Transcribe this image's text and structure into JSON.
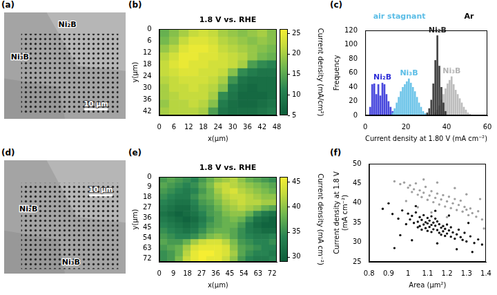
{
  "chart_data": [
    {
      "panel": "(a)",
      "type": "image",
      "labels": [
        "Ni₂B",
        "Ni₃B"
      ],
      "scale_bar": "10 μm"
    },
    {
      "panel": "(b)",
      "type": "heatmap",
      "title": "1.8 V vs. RHE",
      "x_label": "x(μm)",
      "y_label": "y(μm)",
      "x": [
        2,
        6,
        10,
        14,
        18,
        22,
        26,
        30,
        34,
        38,
        42,
        46
      ],
      "y": [
        2,
        6,
        10,
        14,
        18,
        22,
        26,
        30,
        34,
        38,
        42
      ],
      "cells": [
        [
          16,
          18,
          20,
          22,
          23,
          22,
          20,
          19,
          18,
          19,
          20,
          18
        ],
        [
          17,
          19,
          22,
          24,
          24,
          23,
          21,
          20,
          19,
          18,
          19,
          18
        ],
        [
          19,
          21,
          24,
          25,
          25,
          24,
          22,
          21,
          20,
          19,
          18,
          17
        ],
        [
          21,
          23,
          25,
          25,
          24,
          24,
          23,
          22,
          21,
          19,
          17,
          16
        ],
        [
          22,
          24,
          25,
          24,
          24,
          23,
          23,
          22,
          20,
          14,
          12,
          11
        ],
        [
          22,
          23,
          24,
          24,
          23,
          23,
          22,
          18,
          12,
          10,
          9,
          9
        ],
        [
          21,
          22,
          23,
          23,
          23,
          22,
          20,
          13,
          9,
          8,
          8,
          8
        ],
        [
          20,
          22,
          22,
          23,
          22,
          21,
          18,
          10,
          8,
          7,
          8,
          8
        ],
        [
          20,
          21,
          22,
          22,
          22,
          20,
          12,
          9,
          7,
          7,
          7,
          8
        ],
        [
          19,
          21,
          21,
          22,
          21,
          18,
          10,
          8,
          7,
          7,
          8,
          9
        ],
        [
          20,
          21,
          21,
          21,
          20,
          14,
          9,
          8,
          8,
          8,
          9,
          10
        ]
      ],
      "xlim": [
        0,
        48
      ],
      "ylim": [
        0,
        44
      ],
      "xticks": [
        0,
        6,
        12,
        18,
        24,
        30,
        36,
        42,
        48
      ],
      "yticks": [
        0,
        6,
        12,
        18,
        24,
        30,
        36,
        42
      ],
      "clim": [
        5,
        26
      ],
      "cticks": [
        5,
        10,
        15,
        20,
        25
      ],
      "colorbar_label": "Current density (mA/cm²)",
      "grid": false
    },
    {
      "panel": "(c)",
      "type": "histogram",
      "x_label": "Current density at 1.80 V (mA cm⁻²)",
      "y_label": "Frequency",
      "annotations": [
        {
          "text": "air stagnant",
          "color": "#5bbde6"
        },
        {
          "text": "Ar",
          "color": "#000000"
        }
      ],
      "series": [
        {
          "name": "Ni₂B",
          "color": "#2f2fd8",
          "bins": [
            2,
            3,
            4,
            5,
            6,
            7,
            8,
            9,
            10,
            11,
            12,
            13,
            14
          ],
          "counts": [
            12,
            44,
            45,
            30,
            44,
            28,
            46,
            44,
            30,
            20,
            12,
            6
          ]
        },
        {
          "name": "Ni₃B",
          "color": "#5bbde6",
          "bins": [
            13,
            14,
            15,
            16,
            17,
            18,
            19,
            20,
            21,
            22,
            23,
            24,
            25,
            26,
            27,
            28,
            29,
            30,
            31
          ],
          "counts": [
            4,
            10,
            18,
            26,
            34,
            40,
            44,
            48,
            52,
            46,
            40,
            34,
            26,
            18,
            12,
            6,
            3,
            2
          ]
        },
        {
          "name": "Ni₃B",
          "color": "#b4b4b4",
          "bins": [
            34,
            35,
            36,
            37,
            38,
            39,
            40,
            41,
            42,
            43,
            44,
            45,
            46,
            47,
            48,
            49,
            50,
            51,
            52
          ],
          "counts": [
            4,
            8,
            14,
            22,
            30,
            38,
            45,
            50,
            55,
            44,
            36,
            30,
            24,
            18,
            12,
            8,
            4,
            2
          ]
        },
        {
          "name": "Ni₂B",
          "color": "#2a2a2a",
          "bins": [
            30,
            31,
            32,
            33,
            34,
            35,
            36,
            37,
            38,
            39,
            40
          ],
          "counts": [
            4,
            10,
            22,
            45,
            78,
            113,
            70,
            40,
            18,
            6
          ]
        }
      ],
      "xlim": [
        0,
        60
      ],
      "ylim": [
        0,
        120
      ],
      "xticks": [
        0,
        20,
        40,
        60
      ],
      "yticks": [
        0,
        20,
        40,
        60,
        80,
        100,
        120
      ],
      "grid": false
    },
    {
      "panel": "(d)",
      "type": "image",
      "labels": [
        "Ni₂B",
        "Ni₃B"
      ],
      "scale_bar": "10 μm"
    },
    {
      "panel": "(e)",
      "type": "heatmap",
      "title": "1.8 V vs. RHE",
      "x_label": "x(μm)",
      "y_label": "y(μm)",
      "x": [
        2.5,
        7.5,
        12.5,
        17.5,
        22.5,
        27.5,
        32.5,
        37.5,
        42.5,
        47.5,
        52.5,
        57.5,
        62.5,
        67.5,
        72.5
      ],
      "y": [
        2.5,
        7.5,
        12.5,
        17.5,
        22.5,
        27.5,
        32.5,
        37.5,
        42.5,
        47.5,
        52.5,
        57.5,
        62.5,
        67.5,
        72.5
      ],
      "cells": [
        [
          36,
          37,
          36,
          35,
          34,
          36,
          38,
          40,
          41,
          42,
          40,
          38,
          37,
          36,
          35
        ],
        [
          37,
          36,
          35,
          34,
          35,
          37,
          39,
          42,
          43,
          42,
          41,
          40,
          39,
          38,
          37
        ],
        [
          36,
          35,
          34,
          33,
          34,
          36,
          38,
          41,
          43,
          44,
          42,
          41,
          40,
          39,
          38
        ],
        [
          35,
          34,
          33,
          33,
          35,
          37,
          38,
          40,
          42,
          43,
          43,
          42,
          41,
          40,
          40
        ],
        [
          34,
          33,
          32,
          32,
          34,
          36,
          37,
          39,
          41,
          42,
          43,
          42,
          42,
          41,
          41
        ],
        [
          33,
          32,
          31,
          31,
          33,
          35,
          36,
          38,
          40,
          41,
          42,
          41,
          40,
          38,
          37
        ],
        [
          32,
          31,
          30,
          31,
          32,
          34,
          36,
          37,
          39,
          40,
          40,
          38,
          35,
          33,
          32
        ],
        [
          33,
          32,
          31,
          30,
          31,
          33,
          35,
          37,
          38,
          39,
          38,
          35,
          32,
          31,
          30
        ],
        [
          34,
          33,
          32,
          31,
          32,
          34,
          36,
          37,
          38,
          38,
          36,
          33,
          31,
          30,
          30
        ],
        [
          35,
          34,
          33,
          32,
          33,
          35,
          37,
          38,
          38,
          37,
          35,
          33,
          32,
          31,
          31
        ],
        [
          36,
          35,
          34,
          34,
          35,
          37,
          39,
          40,
          39,
          37,
          35,
          34,
          33,
          33,
          34
        ],
        [
          37,
          36,
          36,
          38,
          41,
          43,
          44,
          44,
          42,
          39,
          36,
          35,
          34,
          34,
          35
        ],
        [
          36,
          37,
          38,
          41,
          44,
          45,
          45,
          45,
          44,
          40,
          37,
          36,
          35,
          34,
          34
        ],
        [
          35,
          36,
          38,
          42,
          45,
          46,
          46,
          45,
          44,
          41,
          37,
          35,
          34,
          34,
          33
        ],
        [
          35,
          36,
          39,
          43,
          45,
          46,
          45,
          45,
          43,
          40,
          36,
          34,
          33,
          33,
          34
        ]
      ],
      "xlim": [
        0,
        75
      ],
      "ylim": [
        0,
        75
      ],
      "xticks": [
        0,
        9,
        18,
        27,
        36,
        45,
        54,
        63,
        72
      ],
      "yticks": [
        0,
        9,
        18,
        27,
        36,
        45,
        54,
        63,
        72
      ],
      "clim": [
        29,
        46
      ],
      "cticks": [
        30,
        35,
        40,
        45
      ],
      "colorbar_label": "Current density (mA cm⁻²)",
      "grid": false
    },
    {
      "panel": "(f)",
      "type": "scatter",
      "x_label": "Area (μm²)",
      "y_label": "Current density at 1.8 V (mA cm⁻²)",
      "series": [
        {
          "color": "#a0a0a0",
          "x": [
            0.93,
            0.96,
            0.98,
            1.0,
            1.01,
            1.02,
            1.03,
            1.04,
            1.05,
            1.06,
            1.07,
            1.08,
            1.09,
            1.1,
            1.11,
            1.12,
            1.13,
            1.14,
            1.15,
            1.16,
            1.17,
            1.18,
            1.19,
            1.2,
            1.21,
            1.22,
            1.23,
            1.24,
            1.25,
            1.26,
            1.27,
            1.28,
            1.29,
            1.3,
            1.31,
            1.32,
            1.33,
            1.35,
            1.36,
            1.38,
            0.99,
            1.05,
            1.12,
            1.2,
            1.08,
            1.15,
            1.24,
            1.3,
            1.37,
            1.39
          ],
          "y": [
            45.5,
            44.8,
            45.2,
            43.9,
            44.5,
            42.8,
            43.5,
            45.0,
            42.1,
            43.2,
            41.5,
            42.6,
            44.1,
            40.8,
            41.9,
            43.0,
            40.2,
            41.3,
            42.4,
            39.6,
            40.9,
            42.0,
            39.1,
            40.4,
            41.6,
            38.7,
            39.9,
            41.0,
            38.2,
            39.5,
            40.6,
            37.8,
            39.0,
            38.3,
            36.9,
            38.6,
            37.4,
            36.5,
            37.9,
            35.8,
            40.5,
            38.9,
            37.6,
            36.4,
            46.0,
            45.2,
            43.8,
            42.2,
            41.0,
            33.5
          ]
        },
        {
          "color": "#111111",
          "x": [
            0.87,
            0.9,
            0.92,
            0.95,
            0.97,
            0.99,
            1.0,
            1.01,
            1.02,
            1.03,
            1.04,
            1.05,
            1.05,
            1.06,
            1.06,
            1.07,
            1.07,
            1.08,
            1.08,
            1.09,
            1.09,
            1.1,
            1.1,
            1.1,
            1.11,
            1.11,
            1.12,
            1.12,
            1.12,
            1.13,
            1.13,
            1.14,
            1.14,
            1.15,
            1.15,
            1.16,
            1.16,
            1.17,
            1.17,
            1.18,
            1.18,
            1.19,
            1.19,
            1.2,
            1.2,
            1.21,
            1.22,
            1.22,
            1.23,
            1.24,
            1.25,
            1.26,
            1.27,
            1.28,
            1.29,
            1.3,
            1.32,
            1.34,
            1.36,
            1.38,
            0.93,
            1.02,
            1.15,
            1.25,
            1.33,
            0.96,
            1.04,
            1.14,
            1.21,
            1.31
          ],
          "y": [
            38.5,
            39.9,
            37.2,
            36.0,
            38.1,
            34.6,
            37.3,
            35.8,
            36.7,
            34.9,
            37.6,
            35.2,
            33.8,
            36.4,
            34.1,
            35.7,
            33.2,
            36.9,
            34.5,
            35.1,
            33.6,
            36.2,
            34.8,
            32.9,
            35.5,
            33.9,
            34.4,
            36.6,
            32.6,
            35.0,
            33.3,
            34.2,
            36.0,
            33.1,
            35.3,
            32.4,
            34.6,
            33.7,
            31.9,
            34.1,
            32.8,
            33.4,
            31.6,
            34.5,
            32.2,
            33.0,
            31.4,
            33.8,
            32.5,
            30.9,
            32.0,
            33.2,
            31.3,
            30.6,
            32.4,
            30.2,
            31.5,
            29.8,
            30.7,
            29.4,
            28.5,
            30.5,
            29.7,
            28.2,
            27.5,
            31.8,
            39.2,
            38.0,
            36.8,
            34.9
          ]
        }
      ],
      "xlim": [
        0.8,
        1.4
      ],
      "ylim": [
        25,
        50
      ],
      "xticks": [
        0.8,
        0.9,
        1,
        1.1,
        1.2,
        1.3,
        1.4
      ],
      "yticks": [
        25,
        30,
        35,
        40,
        45,
        50
      ],
      "grid": false
    }
  ]
}
